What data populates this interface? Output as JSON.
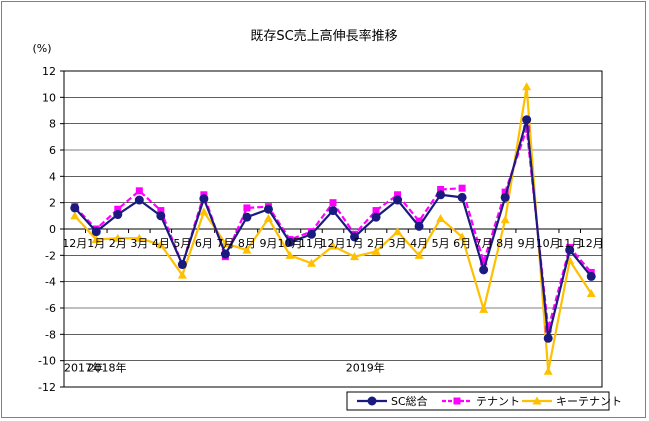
{
  "chart_data": {
    "type": "line",
    "title": "既存SC売上高伸長率推移",
    "ylabel": "(%)",
    "ylim": [
      -12,
      12
    ],
    "yticks": [
      12,
      10,
      8,
      6,
      4,
      2,
      0,
      -2,
      -4,
      -6,
      -8,
      -10,
      -12
    ],
    "categories": [
      "12月",
      "1月",
      "2月",
      "3月",
      "4月",
      "5月",
      "6月",
      "7月",
      "8月",
      "9月",
      "10月",
      "11月",
      "12月",
      "1月",
      "2月",
      "3月",
      "4月",
      "5月",
      "6月",
      "7月",
      "8月",
      "9月",
      "10月",
      "11月",
      "12月"
    ],
    "year_labels": [
      {
        "text": "2017年",
        "index": 0
      },
      {
        "text": "2018年",
        "index": 1
      },
      {
        "text": "2019年",
        "index": 13
      }
    ],
    "grid": true,
    "legend_position": "bottom-right",
    "series": [
      {
        "name": "SC総合",
        "color": "#1a1a80",
        "marker": "circle",
        "dash": "",
        "values": [
          1.6,
          -0.2,
          1.1,
          2.2,
          1.0,
          -2.7,
          2.3,
          -1.9,
          0.9,
          1.5,
          -1.0,
          -0.4,
          1.4,
          -0.6,
          0.9,
          2.2,
          0.2,
          2.6,
          2.4,
          -3.1,
          2.4,
          8.3,
          -8.3,
          -1.6,
          -3.6
        ]
      },
      {
        "name": "テナント",
        "color": "#ff00ff",
        "marker": "square",
        "dash": "6,3",
        "values": [
          1.7,
          0.0,
          1.5,
          2.9,
          1.4,
          -2.7,
          2.6,
          -2.1,
          1.6,
          1.7,
          -0.8,
          -0.2,
          2.0,
          -0.4,
          1.4,
          2.6,
          0.6,
          3.0,
          3.1,
          -2.5,
          2.8,
          7.6,
          -7.6,
          -1.4,
          -3.3
        ]
      },
      {
        "name": "キーテナント",
        "color": "#ffc000",
        "marker": "triangle",
        "dash": "",
        "values": [
          1.0,
          -0.8,
          -0.7,
          -0.7,
          -1.2,
          -3.5,
          1.3,
          -1.1,
          -1.6,
          0.8,
          -2.0,
          -2.6,
          -1.3,
          -2.1,
          -1.7,
          -0.2,
          -2.0,
          0.8,
          -0.6,
          -6.1,
          0.7,
          10.8,
          -10.8,
          -2.4,
          -4.9
        ]
      }
    ]
  }
}
